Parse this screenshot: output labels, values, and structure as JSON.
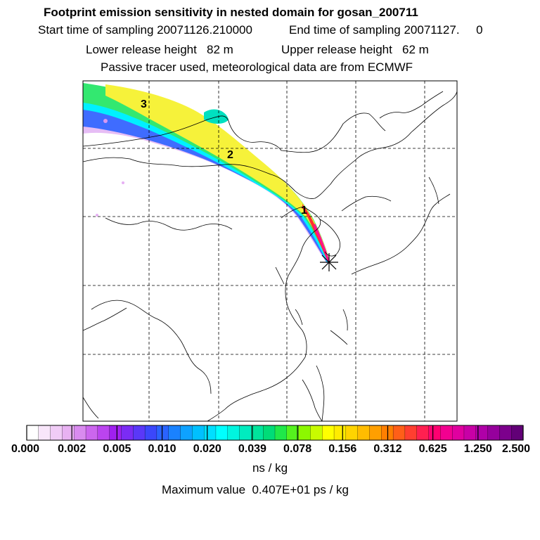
{
  "header": {
    "title": "Footprint emission sensitivity in nested domain for gosan_200711",
    "start_time": "Start time of sampling 20071126.210000",
    "end_time": "End time of sampling 20071127.     0",
    "lower_release": "Lower release height   82 m",
    "upper_release": "Upper release height   62 m",
    "passive": "Passive tracer used, meteorological data are from ECMWF"
  },
  "chart_data": {
    "type": "heatmap",
    "title": "Footprint emission sensitivity in nested domain for gosan_200711",
    "colorbar": {
      "units": "ns / kg",
      "tick_labels": [
        "0.000",
        "0.002",
        "0.005",
        "0.010",
        "0.020",
        "0.039",
        "0.078",
        "0.156",
        "0.312",
        "0.625",
        "1.250",
        "2.500"
      ],
      "colors": [
        "#ffffff",
        "#f8e6fa",
        "#f0ccf6",
        "#e8b2f2",
        "#d98bef",
        "#cc66ee",
        "#bb44ef",
        "#a020f0",
        "#7b2cf4",
        "#5a38f8",
        "#3b47fb",
        "#2a63ff",
        "#1a82ff",
        "#0ea2ff",
        "#00c0ff",
        "#00dfff",
        "#00ffff",
        "#00f5df",
        "#00ecbf",
        "#00e49c",
        "#00dc78",
        "#20e84a",
        "#55f21e",
        "#8cf800",
        "#c8fb00",
        "#ffff00",
        "#ffec00",
        "#ffd400",
        "#ffbc00",
        "#ff9f00",
        "#ff7f00",
        "#ff5f18",
        "#ff3f30",
        "#ff2050",
        "#ff0070",
        "#f20090",
        "#e0009f",
        "#c800a6",
        "#b000a8",
        "#96009c",
        "#7c008c",
        "#620077"
      ]
    },
    "max_value_label": "Maximum value  0.407E+01 ps / kg",
    "plume_markers": [
      "1",
      "2",
      "3"
    ],
    "receptor": "gosan",
    "gridlines": true
  }
}
